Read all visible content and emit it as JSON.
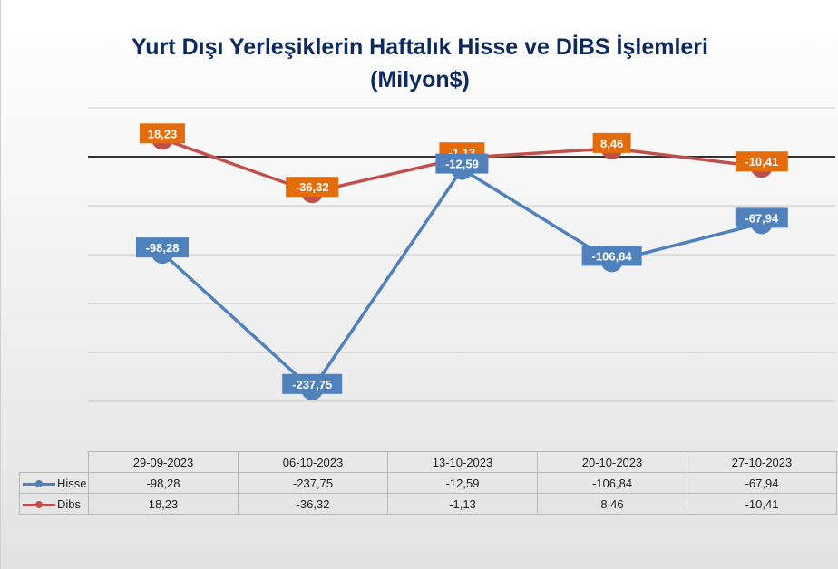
{
  "chart_data": {
    "type": "line",
    "title_lines": [
      "Yurt Dışı Yerleşiklerin Haftalık Hisse ve DİBS İşlemleri",
      "(Milyon$)"
    ],
    "categories": [
      "29-09-2023",
      "06-10-2023",
      "13-10-2023",
      "20-10-2023",
      "27-10-2023"
    ],
    "series": [
      {
        "name": "Hisse",
        "values": [
          -98.28,
          -237.75,
          -12.59,
          -106.84,
          -67.94
        ],
        "labels": [
          "-98,28",
          "-237,75",
          "-12,59",
          "-106,84",
          "-67,94"
        ],
        "color": "#4f81bd"
      },
      {
        "name": "Dibs",
        "values": [
          18.23,
          -36.32,
          -1.13,
          8.46,
          -10.41
        ],
        "labels": [
          "18,23",
          "-36,32",
          "-1,13",
          "8,46",
          "-10,41"
        ],
        "color": "#c0504d",
        "label_color": "#e46c0a"
      }
    ],
    "ylim": [
      -250,
      50
    ],
    "grid": true,
    "data_table": true
  }
}
